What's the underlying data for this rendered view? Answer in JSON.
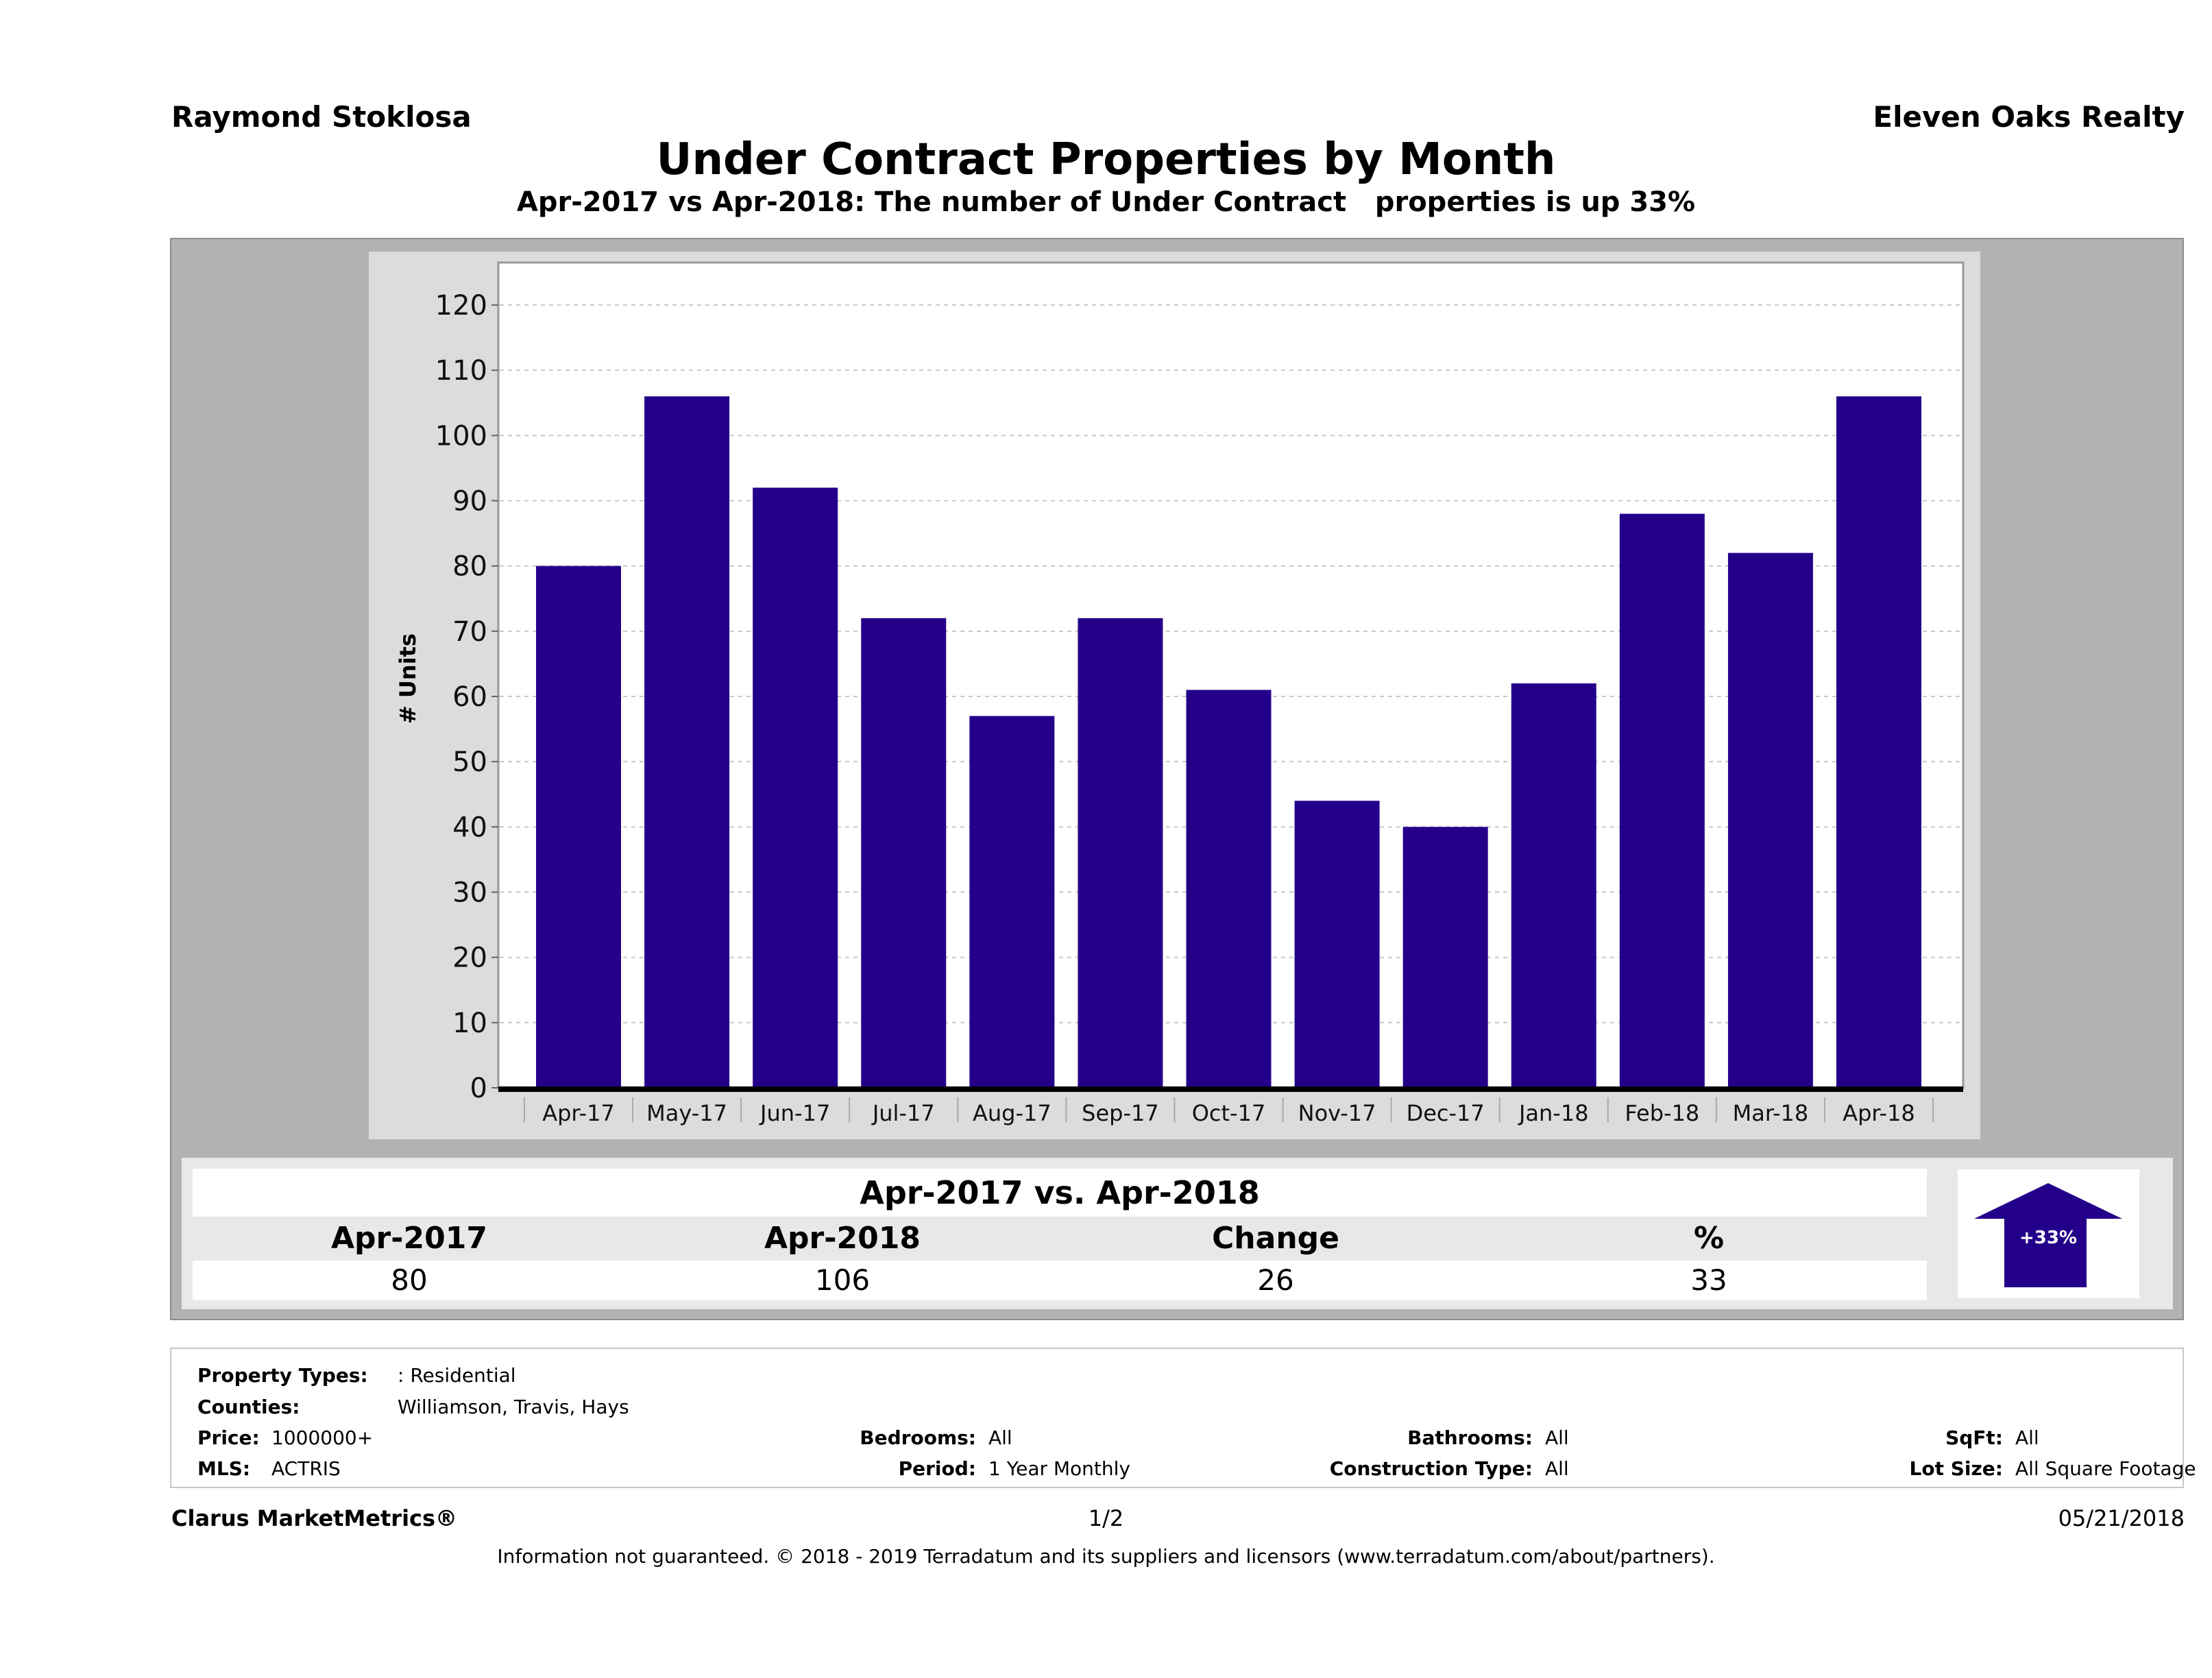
{
  "header": {
    "agent_name": "Raymond Stoklosa",
    "brokerage": "Eleven Oaks Realty",
    "title": "Under Contract Properties by Month",
    "subtitle": "Apr-2017 vs Apr-2018: The number of Under Contract   properties is up 33%"
  },
  "chart_data": {
    "type": "bar",
    "title": "Under Contract Properties by Month",
    "xlabel": "",
    "ylabel": "# Units",
    "ylim": [
      0,
      120
    ],
    "yticks": [
      0,
      10,
      20,
      30,
      40,
      50,
      60,
      70,
      80,
      90,
      100,
      110,
      120
    ],
    "grid": true,
    "legend": "none",
    "bar_color": "#24008a",
    "categories": [
      "Apr-17",
      "May-17",
      "Jun-17",
      "Jul-17",
      "Aug-17",
      "Sep-17",
      "Oct-17",
      "Nov-17",
      "Dec-17",
      "Jan-18",
      "Feb-18",
      "Mar-18",
      "Apr-18"
    ],
    "values": [
      80,
      106,
      92,
      72,
      57,
      72,
      61,
      44,
      40,
      62,
      88,
      82,
      106
    ]
  },
  "comparison": {
    "title": "Apr-2017 vs. Apr-2018",
    "headers": [
      "Apr-2017",
      "Apr-2018",
      "Change",
      "%"
    ],
    "values": [
      "80",
      "106",
      "26",
      "33"
    ],
    "badge_label": "+33%",
    "direction": "up",
    "badge_color": "#24008a"
  },
  "filters": {
    "property_types": {
      "label": "Property Types:",
      "value": ": Residential"
    },
    "counties": {
      "label": "Counties:",
      "value": "Williamson, Travis, Hays"
    },
    "price": {
      "label": "Price:",
      "value": "1000000+"
    },
    "mls": {
      "label": "MLS:",
      "value": "ACTRIS"
    },
    "bedrooms": {
      "label": "Bedrooms:",
      "value": "All"
    },
    "period": {
      "label": "Period:",
      "value": "1 Year Monthly"
    },
    "bathrooms": {
      "label": "Bathrooms:",
      "value": "All"
    },
    "construction_type": {
      "label": "Construction Type:",
      "value": "All"
    },
    "sqft": {
      "label": "SqFt:",
      "value": "All"
    },
    "lot_size": {
      "label": "Lot Size:",
      "value": "All Square Footage"
    }
  },
  "footer": {
    "brand": "Clarus MarketMetrics®",
    "page": "1/2",
    "date": "05/21/2018",
    "disclaimer": "Information not guaranteed. © 2018 - 2019 Terradatum and its suppliers and licensors (www.terradatum.com/about/partners)."
  }
}
